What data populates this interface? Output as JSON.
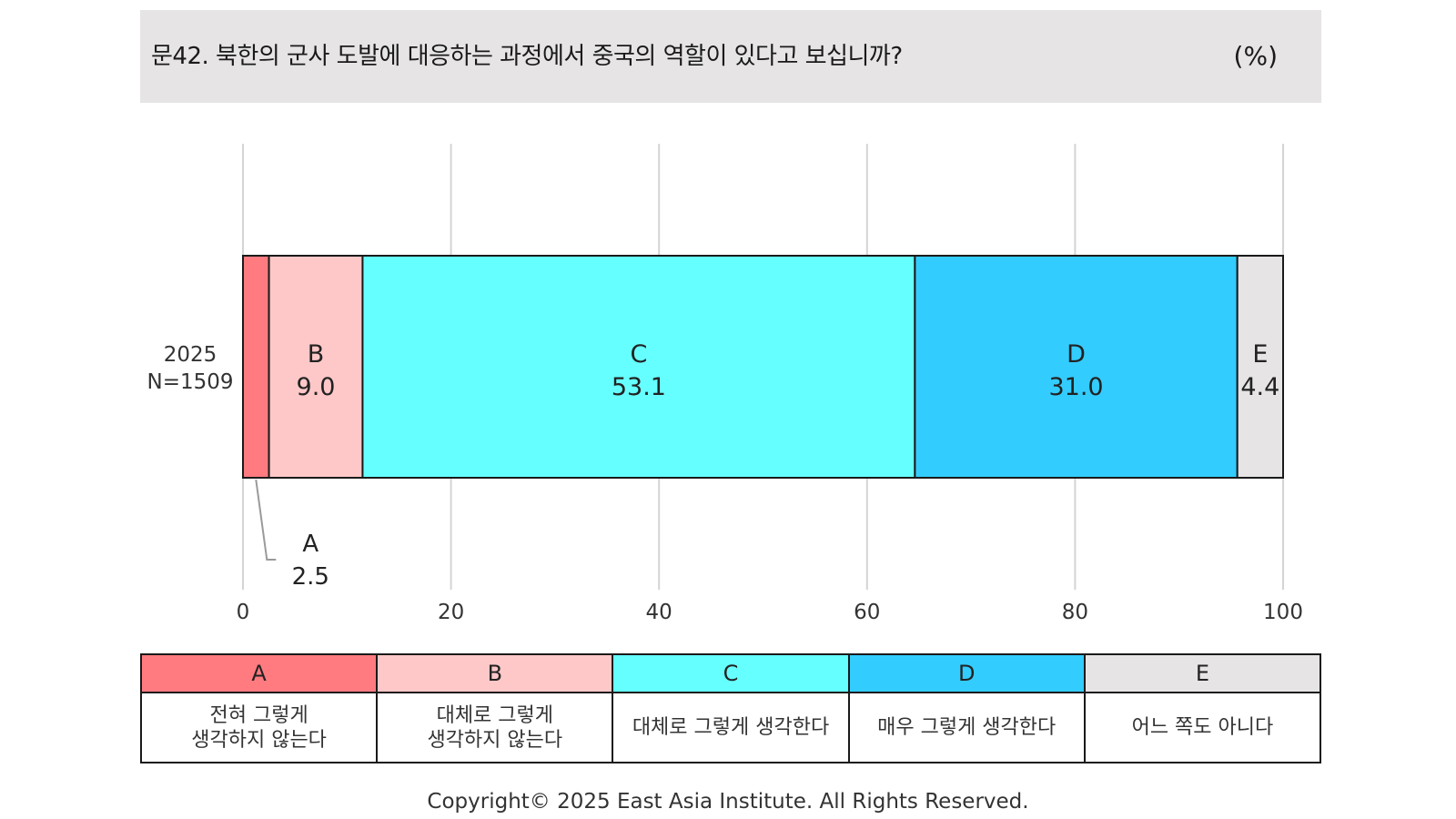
{
  "header": {
    "title": "문42. 북한의 군사 도발에 대응하는 과정에서 중국의 역할이 있다고 보십니까?",
    "unit": "(%)"
  },
  "chart_data": {
    "type": "bar",
    "orientation": "horizontal-stacked",
    "categories": [
      "2025"
    ],
    "category_sublabels": [
      "N=1509"
    ],
    "xlim": [
      0,
      100
    ],
    "x_ticks": [
      "0",
      "20",
      "40",
      "60",
      "80",
      "100"
    ],
    "grid": true,
    "series": [
      {
        "name": "A",
        "values": [
          2.5
        ],
        "label": "2.5",
        "color": "#ff7b80"
      },
      {
        "name": "B",
        "values": [
          9.0
        ],
        "label": "9.0",
        "color": "#ffc8c8"
      },
      {
        "name": "C",
        "values": [
          53.1
        ],
        "label": "53.1",
        "color": "#66ffff"
      },
      {
        "name": "D",
        "values": [
          31.0
        ],
        "label": "31.0",
        "color": "#33ccff"
      },
      {
        "name": "E",
        "values": [
          4.4
        ],
        "label": "4.4",
        "color": "#e6e4e5"
      }
    ]
  },
  "legend": [
    {
      "key": "A",
      "desc": "전혀 그렇게\n생각하지 않는다"
    },
    {
      "key": "B",
      "desc": "대체로 그렇게\n생각하지 않는다"
    },
    {
      "key": "C",
      "desc": "대체로 그렇게 생각한다"
    },
    {
      "key": "D",
      "desc": "매우 그렇게 생각한다"
    },
    {
      "key": "E",
      "desc": "어느 쪽도 아니다"
    }
  ],
  "footer": {
    "copyright": "Copyright© 2025 East Asia Institute. All Rights Reserved."
  }
}
